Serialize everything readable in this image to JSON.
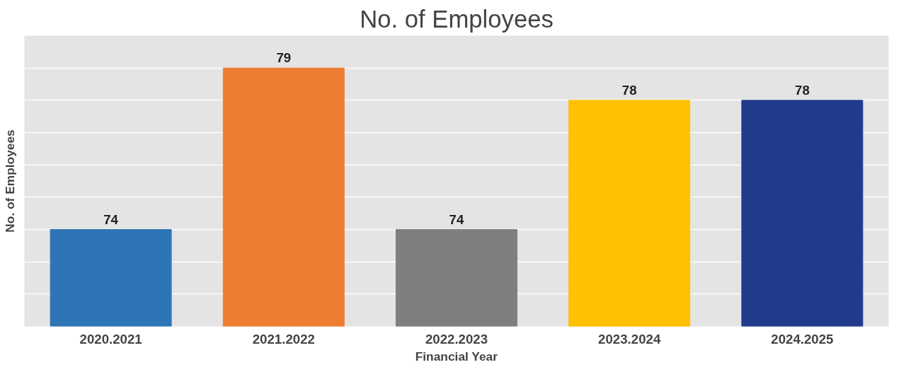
{
  "chart_data": {
    "type": "bar",
    "title": "No. of Employees",
    "xlabel": "Financial Year",
    "ylabel": "No. of Employees",
    "categories": [
      "2020.2021",
      "2021.2022",
      "2022.2023",
      "2023.2024",
      "2024.2025"
    ],
    "values": [
      74,
      79,
      74,
      78,
      78
    ],
    "colors": [
      "#2e75b6",
      "#ed7d31",
      "#7f7f7f",
      "#ffc000",
      "#203a8c"
    ],
    "ylim": [
      71,
      80
    ],
    "yticks": [
      {
        "value": 71,
        "label": null
      },
      {
        "value": 72,
        "label": null
      },
      {
        "value": 73,
        "label": null
      },
      {
        "value": 74,
        "label": null
      },
      {
        "value": 75,
        "label": null
      },
      {
        "value": 76,
        "label": null
      },
      {
        "value": 77,
        "label": null
      },
      {
        "value": 78,
        "label": null
      },
      {
        "value": 79,
        "label": null
      },
      {
        "value": 80,
        "label": null
      }
    ],
    "tick_labels": "x",
    "grid": "y",
    "data_labels": true
  }
}
